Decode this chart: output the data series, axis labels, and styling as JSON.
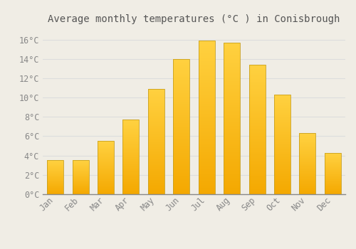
{
  "title": "Average monthly temperatures (°C ) in Conisbrough",
  "months": [
    "Jan",
    "Feb",
    "Mar",
    "Apr",
    "May",
    "Jun",
    "Jul",
    "Aug",
    "Sep",
    "Oct",
    "Nov",
    "Dec"
  ],
  "temperatures": [
    3.5,
    3.5,
    5.5,
    7.7,
    10.9,
    14.0,
    15.9,
    15.7,
    13.4,
    10.3,
    6.3,
    4.3
  ],
  "bar_color_bottom": "#F5A800",
  "bar_color_top": "#FFD040",
  "bar_edge_color": "#B8860B",
  "background_color": "#F0EDE5",
  "grid_color": "#DDDDDD",
  "text_color": "#888888",
  "ylim": [
    0,
    17
  ],
  "yticks": [
    0,
    2,
    4,
    6,
    8,
    10,
    12,
    14,
    16
  ],
  "ytick_labels": [
    "0°C",
    "2°C",
    "4°C",
    "6°C",
    "8°C",
    "10°C",
    "12°C",
    "14°C",
    "16°C"
  ],
  "title_fontsize": 10,
  "tick_fontsize": 8.5,
  "bar_width": 0.65
}
